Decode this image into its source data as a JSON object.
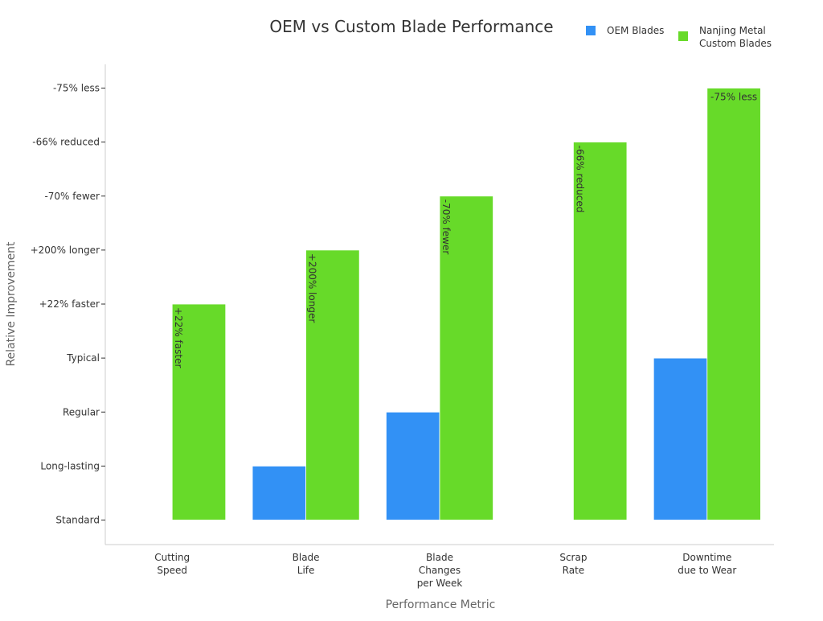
{
  "chart_data": {
    "type": "bar",
    "title": "OEM vs Custom Blade Performance",
    "xlabel": "Performance Metric",
    "ylabel": "Relative Improvement",
    "categories": [
      [
        "Cutting",
        "Speed"
      ],
      [
        "Blade",
        "Life"
      ],
      [
        "Blade",
        "Changes",
        "per Week"
      ],
      [
        "Scrap",
        "Rate"
      ],
      [
        "Downtime",
        "due to Wear"
      ]
    ],
    "y_tick_labels": [
      "Standard",
      "Long-lasting",
      "Regular",
      "Typical",
      "+22% faster",
      "+200% longer",
      "-70% fewer",
      "-66% reduced",
      "-75% less"
    ],
    "ylim": [
      -0.5,
      8.5
    ],
    "series": [
      {
        "name": "OEM Blades",
        "color": "#3291f5",
        "values": [
          0,
          1,
          2,
          0,
          3
        ],
        "labels": [
          "",
          "",
          "",
          "",
          ""
        ]
      },
      {
        "name": "Nanjing Metal Custom Blades",
        "legend_lines": [
          "Nanjing Metal",
          "Custom Blades"
        ],
        "color": "#67da29",
        "values": [
          4,
          5,
          6,
          7,
          8
        ],
        "labels": [
          "+22% faster",
          "+200% longer",
          "-70% fewer",
          "-66% reduced",
          "-75% less"
        ]
      }
    ],
    "legend_position": "top-right",
    "grid": false
  }
}
